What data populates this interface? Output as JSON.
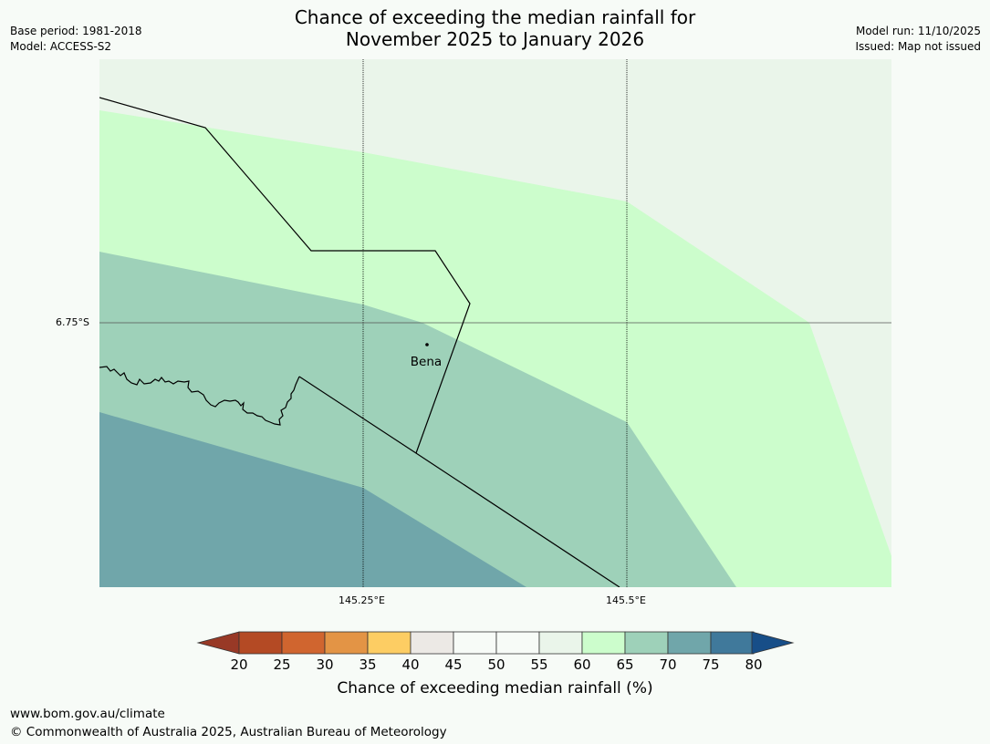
{
  "header": {
    "title_line1": "Chance of exceeding the median rainfall for",
    "title_line2": "November 2025 to January 2026",
    "base_period": "Base period: 1981-2018",
    "model": "Model: ACCESS-S2",
    "model_run": "Model run: 11/10/2025",
    "issued": "Issued: Map not issued"
  },
  "map": {
    "lat_label": "6.75°S",
    "lon_labels": [
      "145.25°E",
      "145.5°E"
    ],
    "place": "Bena",
    "colors": {
      "band_60": "#eaf5ea",
      "band_65": "#ccfdcc",
      "band_70": "#9ed1b9",
      "band_75": "#70a6aa"
    }
  },
  "colorbar": {
    "title": "Chance of exceeding median rainfall (%)",
    "labels": [
      "20",
      "25",
      "30",
      "35",
      "40",
      "45",
      "50",
      "55",
      "60",
      "65",
      "70",
      "75",
      "80"
    ],
    "colors": [
      "#b44a24",
      "#d0652f",
      "#e39445",
      "#fdcd63",
      "#ece9e5",
      "#f7fbf7",
      "#f7fbf7",
      "#eaf5ea",
      "#ccfdcc",
      "#9ed1b9",
      "#70a6aa",
      "#40799b"
    ],
    "under_color": "#983926",
    "over_color": "#174e88"
  },
  "footer": {
    "url": "www.bom.gov.au/climate",
    "copyright": "© Commonwealth of Australia 2025, Australian Bureau of Meteorology"
  }
}
